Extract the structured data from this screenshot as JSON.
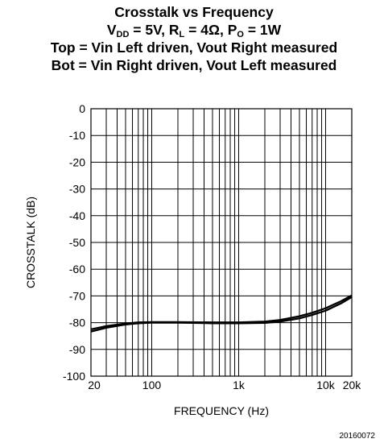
{
  "figure_id": "20160072",
  "chart_data": {
    "type": "line",
    "title": "Crosstalk vs Frequency",
    "subtitle": {
      "vdd_sym": "V",
      "vdd_sub": "DD",
      "vdd_val": " = 5V, ",
      "rl_sym": "R",
      "rl_sub": "L",
      "rl_val": " = 4Ω, ",
      "po_sym": "P",
      "po_sub": "O",
      "po_val": " = 1W"
    },
    "notes": [
      "Top = Vin Left driven, Vout Right measured",
      "Bot = Vin Right driven, Vout Left measured"
    ],
    "xlabel": "FREQUENCY (Hz)",
    "ylabel": "CROSSTALK (dB)",
    "x_scale": "log",
    "xlim": [
      20,
      20000
    ],
    "ylim": [
      -100,
      0
    ],
    "grid": true,
    "x_ticks": [
      {
        "value": 20,
        "label": "20"
      },
      {
        "value": 100,
        "label": "100"
      },
      {
        "value": 1000,
        "label": "1k"
      },
      {
        "value": 10000,
        "label": "10k"
      },
      {
        "value": 20000,
        "label": "20k"
      }
    ],
    "y_ticks": [
      {
        "value": 0,
        "label": "0"
      },
      {
        "value": -10,
        "label": "-10"
      },
      {
        "value": -20,
        "label": "-20"
      },
      {
        "value": -30,
        "label": "-30"
      },
      {
        "value": -40,
        "label": "-40"
      },
      {
        "value": -50,
        "label": "-50"
      },
      {
        "value": -60,
        "label": "-60"
      },
      {
        "value": -70,
        "label": "-70"
      },
      {
        "value": -80,
        "label": "-80"
      },
      {
        "value": -90,
        "label": "-90"
      },
      {
        "value": -100,
        "label": "-100"
      }
    ],
    "series": [
      {
        "x": [
          20,
          30,
          50,
          70,
          100,
          200,
          500,
          1000,
          2000,
          3000,
          5000,
          7000,
          10000,
          15000,
          20000
        ],
        "y": [
          -82.5,
          -81.3,
          -80.3,
          -79.9,
          -79.8,
          -79.8,
          -79.9,
          -79.9,
          -79.6,
          -79.0,
          -77.6,
          -76.3,
          -74.6,
          -72.0,
          -69.8
        ]
      },
      {
        "x": [
          20,
          30,
          50,
          70,
          100,
          200,
          500,
          1000,
          2000,
          3000,
          5000,
          7000,
          10000,
          15000,
          20000
        ],
        "y": [
          -83.3,
          -81.9,
          -80.7,
          -80.2,
          -80.0,
          -80.0,
          -80.2,
          -80.2,
          -80.1,
          -79.6,
          -78.4,
          -77.1,
          -75.5,
          -72.8,
          -70.4
        ]
      }
    ]
  }
}
